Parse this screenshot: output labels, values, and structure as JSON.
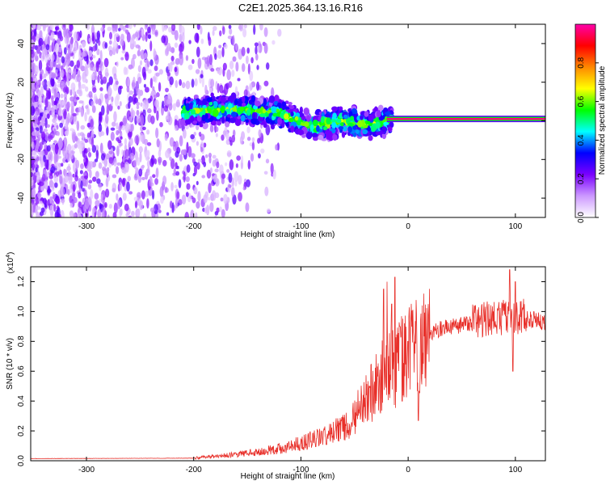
{
  "title": "C2E1.2025.364.13.16.R16",
  "chart_data": [
    {
      "type": "heatmap",
      "name": "spectrogram",
      "xlabel": "Height of straight line (km)",
      "ylabel": "Frequency (Hz)",
      "xlim": [
        -352,
        128
      ],
      "ylim": [
        -50,
        50
      ],
      "xticks": [
        -300,
        -200,
        -100,
        0,
        100
      ],
      "yticks": [
        -40,
        -20,
        0,
        20,
        40
      ],
      "colorbar": {
        "label": "Normalized spectral amplitude",
        "range": [
          0,
          1
        ],
        "ticks": [
          0.0,
          0.2,
          0.4,
          0.6,
          0.8
        ],
        "colormap": [
          "#ffffff",
          "#cc99ff",
          "#7a00ff",
          "#0000ff",
          "#00ffff",
          "#00ff00",
          "#ffff00",
          "#ff8800",
          "#ff0000",
          "#ff00aa"
        ]
      },
      "features": {
        "noise_region_km": [
          -352,
          -160
        ],
        "signal_start_km": -210,
        "steady_tone_start_km": -20,
        "steady_tone_frequency_hz": 1,
        "signal_band_center_hz": [
          [
            -210,
            5
          ],
          [
            -160,
            6
          ],
          [
            -120,
            4
          ],
          [
            -90,
            -3
          ],
          [
            -60,
            0
          ],
          [
            -40,
            -2
          ],
          [
            -20,
            0
          ],
          [
            0,
            2
          ],
          [
            128,
            1
          ]
        ]
      }
    },
    {
      "type": "line",
      "name": "snr",
      "xlabel": "Height of straight line (km)",
      "ylabel": "SNR (10 * v/v)",
      "scale_label": "(x10",
      "scale_exponent": "4",
      "scale_close": ")",
      "xlim": [
        -352,
        128
      ],
      "ylim": [
        0,
        1.3
      ],
      "xticks": [
        -300,
        -200,
        -100,
        0,
        100
      ],
      "yticks": [
        0.0,
        0.2,
        0.4,
        0.6,
        0.8,
        1.0,
        1.2
      ],
      "color": "#e8302a",
      "envelope": [
        [
          -352,
          0.015
        ],
        [
          -200,
          0.018
        ],
        [
          -180,
          0.03
        ],
        [
          -150,
          0.05
        ],
        [
          -120,
          0.08
        ],
        [
          -100,
          0.12
        ],
        [
          -80,
          0.16
        ],
        [
          -60,
          0.22
        ],
        [
          -50,
          0.3
        ],
        [
          -40,
          0.4
        ],
        [
          -30,
          0.5
        ],
        [
          -20,
          0.6
        ],
        [
          -10,
          0.65
        ],
        [
          0,
          0.7
        ],
        [
          10,
          0.8
        ],
        [
          20,
          0.88
        ],
        [
          30,
          0.92
        ],
        [
          50,
          0.95
        ],
        [
          80,
          0.98
        ],
        [
          100,
          1.0
        ],
        [
          128,
          0.97
        ]
      ],
      "spikes": [
        [
          -23,
          1.15
        ],
        [
          -20,
          1.2
        ],
        [
          -15,
          1.05
        ],
        [
          -12,
          1.23
        ],
        [
          -8,
          0.9
        ],
        [
          -5,
          0.4
        ],
        [
          0,
          0.8
        ],
        [
          10,
          0.27
        ],
        [
          95,
          1.28
        ],
        [
          98,
          0.6
        ],
        [
          100,
          1.2
        ]
      ]
    }
  ]
}
